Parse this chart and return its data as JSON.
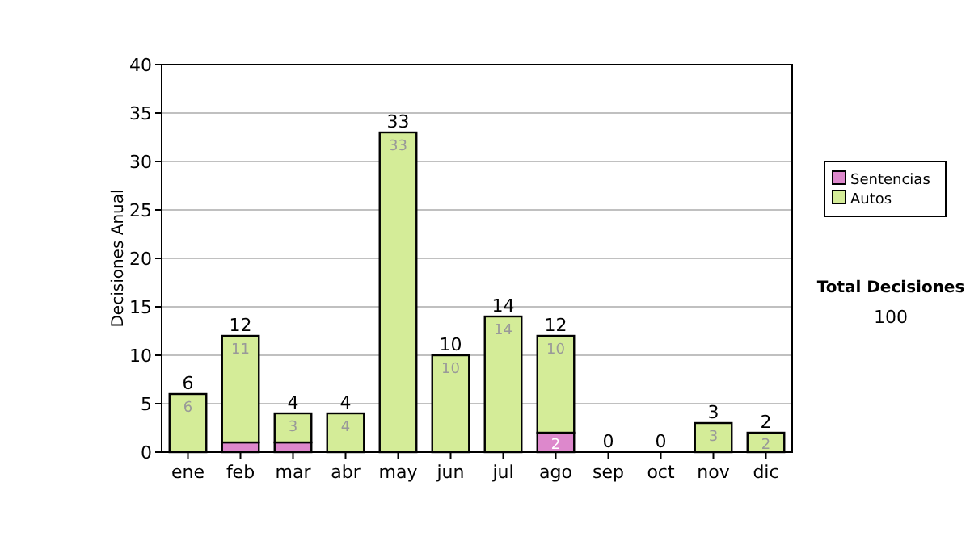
{
  "chart_data": {
    "type": "bar",
    "stacked": true,
    "ylabel": "Decisiones Anual",
    "categories": [
      "ene",
      "feb",
      "mar",
      "abr",
      "may",
      "jun",
      "jul",
      "ago",
      "sep",
      "oct",
      "nov",
      "dic"
    ],
    "series": [
      {
        "name": "Sentencias",
        "color": "#dd88cc",
        "values": [
          0,
          1,
          1,
          0,
          0,
          0,
          0,
          2,
          0,
          0,
          0,
          0
        ],
        "value_labels": [
          null,
          null,
          null,
          null,
          null,
          null,
          null,
          "2",
          null,
          null,
          null,
          null
        ]
      },
      {
        "name": "Autos",
        "color": "#d4ec98",
        "values": [
          6,
          11,
          3,
          4,
          33,
          10,
          14,
          10,
          0,
          0,
          3,
          2
        ],
        "value_labels": [
          "6",
          "11",
          "3",
          "4",
          "33",
          "10",
          "14",
          "10",
          null,
          null,
          "3",
          "2"
        ]
      }
    ],
    "totals": [
      "6",
      "12",
      "4",
      "4",
      "33",
      "10",
      "14",
      "12",
      "0",
      "0",
      "3",
      "2"
    ],
    "ylim": [
      0,
      40
    ],
    "yticks": [
      0,
      5,
      10,
      15,
      20,
      25,
      30,
      35,
      40
    ],
    "grid": "y",
    "legend": "right",
    "annotations": [
      "Total Decisiones",
      "100"
    ]
  }
}
